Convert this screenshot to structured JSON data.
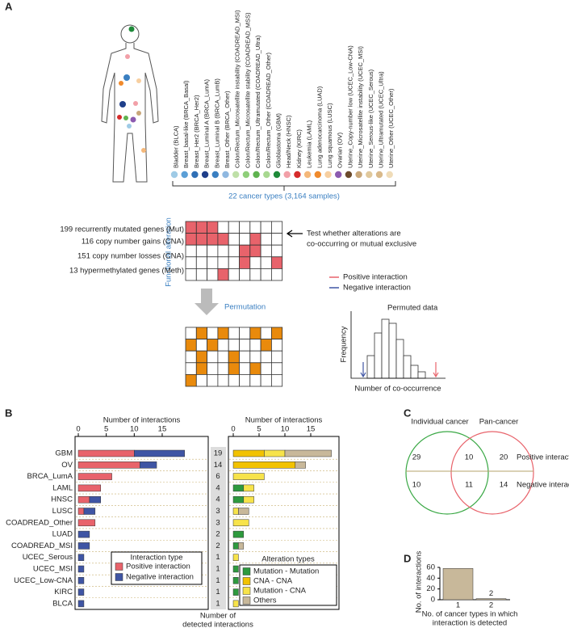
{
  "panel_labels": [
    "A",
    "B",
    "C",
    "D"
  ],
  "panel_a": {
    "cancer_types": [
      {
        "label": "Bladder (BLCA)",
        "color": "#9fcbe6"
      },
      {
        "label": "Breast_basal-like (BRCA_Basal)",
        "color": "#5b9fd6"
      },
      {
        "label": "Breast_Her2 (BRCA_Her2)",
        "color": "#2f6fb5"
      },
      {
        "label": "Breast_Luminal A (BRCA_LumA)",
        "color": "#1f3f8a"
      },
      {
        "label": "Breast_Luminal B (BRCA_LumB)",
        "color": "#3a7fc1"
      },
      {
        "label": "Breast_Other (BRCA_Other)",
        "color": "#8fb8e0"
      },
      {
        "label": "Colon/Rectum_Microsatellite instability (COADREAD_MSI)",
        "color": "#bfe0a8"
      },
      {
        "label": "Colon/Rectum_Microsatellite stability (COADREAD_MSS)",
        "color": "#8fcf7a"
      },
      {
        "label": "Colon/Rectum_Ultramutated (COADREAD_Ultra)",
        "color": "#5fb34f"
      },
      {
        "label": "Colon/Rectum_Other (COADREAD_Other)",
        "color": "#a8d890"
      },
      {
        "label": "Glioblastoma (GBM)",
        "color": "#1f8a3a"
      },
      {
        "label": "Head/Neck (HNSC)",
        "color": "#f2a0a8"
      },
      {
        "label": "Kidney (KIRC)",
        "color": "#d62b2b"
      },
      {
        "label": "Leukemia (LAML)",
        "color": "#f5b87a"
      },
      {
        "label": "Lung adenocarcinoma (LUAD)",
        "color": "#f08a2c"
      },
      {
        "label": "Lung squamous (LUSC)",
        "color": "#f7cfa0"
      },
      {
        "label": "Ovarian (OV)",
        "color": "#8c5bb0"
      },
      {
        "label": "Uterine_Copy-number low (UCEC_Low-CNA)",
        "color": "#6b4a2b"
      },
      {
        "label": "Uterine_Microsatellite instability (UCEC_MSI)",
        "color": "#c9a77a"
      },
      {
        "label": "Uterine_Serous-like (UCEC_Serous)",
        "color": "#e0c89c"
      },
      {
        "label": "Uterine_Ultramutated (UCEC_Ultra)",
        "color": "#d9b98a"
      },
      {
        "label": "Uterine_Other (UCEC_Other)",
        "color": "#f0dcb8"
      }
    ],
    "cancer_types_caption": "22 cancer types (3,164 samples)",
    "alteration_rows": [
      "199 recurrently mutated genes (Mut)",
      "116 copy number gains (CNA)",
      "151 copy number losses (CNA)",
      "13 hypermethylated genes (Meth)"
    ],
    "functional_alteration": "Functional alteration",
    "test_note": [
      "Test whether alterations are",
      "co-occurring or mutual exclusive"
    ],
    "permutation": "Permutation",
    "legend": [
      {
        "label": "Positive interaction",
        "color": "#e8636b"
      },
      {
        "label": "Negative interaction",
        "color": "#3f55a4"
      }
    ],
    "permuted_data": "Permuted data",
    "y_label": "Frequency",
    "x_label": "Number of co-occurrence"
  },
  "chart_data": [
    {
      "type": "hbar-stacked",
      "title": "Number of interactions",
      "categories": [
        "GBM",
        "OV",
        "BRCA_LumA",
        "LAML",
        "HNSC",
        "LUSC",
        "COADREAD_Other",
        "LUAD",
        "COADREAD_MSI",
        "UCEC_Serous",
        "UCEC_MSI",
        "UCEC_Low-CNA",
        "KIRC",
        "BLCA"
      ],
      "series": [
        {
          "name": "Positive interaction",
          "color": "#e8636b",
          "values": [
            10,
            11,
            6,
            4,
            2,
            1,
            3,
            0,
            0,
            0,
            0,
            0,
            0,
            0
          ]
        },
        {
          "name": "Negative interaction",
          "color": "#3f55a4",
          "values": [
            9,
            3,
            0,
            0,
            2,
            2,
            0,
            2,
            2,
            1,
            1,
            1,
            1,
            1
          ]
        }
      ],
      "legend_title": "Interaction type",
      "xlim": [
        -0.58,
        23.23
      ],
      "xticks": [
        0,
        5,
        10,
        15
      ]
    },
    {
      "type": "hbar-stacked",
      "title": "Number of interactions",
      "series": [
        {
          "name": "Mutation - Mutation",
          "color": "#2e9a3e",
          "values": [
            0,
            0,
            0,
            2,
            2,
            0,
            0,
            2,
            1,
            0,
            1,
            1,
            1,
            0
          ]
        },
        {
          "name": "CNA - CNA",
          "color": "#f2c200",
          "values": [
            6,
            12,
            0,
            0,
            0,
            0,
            0,
            0,
            0,
            0,
            0,
            0,
            0,
            0
          ]
        },
        {
          "name": "Mutation - CNA",
          "color": "#f7e34a",
          "values": [
            4,
            0,
            6,
            2,
            2,
            1,
            3,
            0,
            0,
            1,
            0,
            0,
            0,
            1
          ]
        },
        {
          "name": "Others",
          "color": "#c8b89a",
          "values": [
            9,
            2,
            0,
            0,
            0,
            2,
            0,
            0,
            1,
            0,
            0,
            0,
            0,
            0
          ]
        }
      ],
      "legend_title": "Alteration types",
      "xlim": [
        -0.94,
        20.47
      ],
      "xticks": [
        0,
        5,
        10,
        15
      ]
    },
    {
      "type": "bar",
      "categories": [
        "1",
        "2"
      ],
      "values": [
        58,
        2
      ],
      "value_labels": [
        null,
        "2"
      ],
      "color": "#c8b89a",
      "ylim": [
        0,
        60
      ],
      "yticks": [
        0,
        20,
        40,
        60
      ],
      "y_label": "No. of interactions",
      "x_label": [
        "No. of cancer types in which",
        "interaction is detected"
      ]
    }
  ],
  "detected": {
    "title": [
      "Number of",
      "detected interactions"
    ],
    "values": [
      19,
      14,
      6,
      4,
      4,
      3,
      3,
      2,
      2,
      1,
      1,
      1,
      1,
      1
    ]
  },
  "venn": {
    "sets": [
      {
        "label": "Individual cancer",
        "color": "#3aa845"
      },
      {
        "label": "Pan-cancer",
        "color": "#e8636b"
      }
    ],
    "rows": [
      {
        "label": "Positive interaction",
        "values": [
          29,
          10,
          20
        ]
      },
      {
        "label": "Negative interaction",
        "values": [
          10,
          11,
          14
        ]
      }
    ]
  }
}
